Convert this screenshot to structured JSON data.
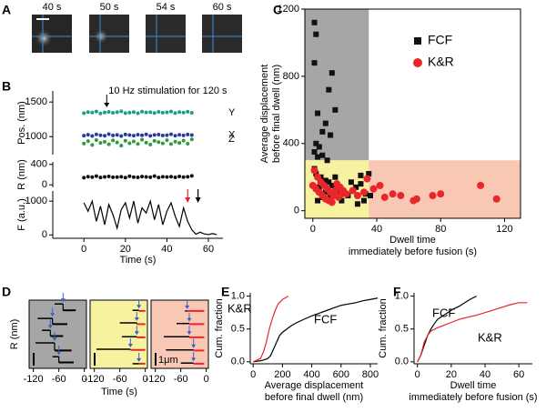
{
  "images": {
    "label": "A",
    "frames": [
      "40 s",
      "50 s",
      "54 s",
      "60 s"
    ]
  },
  "chart_data": [
    {
      "type": "scatter",
      "label": "B",
      "ylabel": "Pos. (nm)",
      "annotation": {
        "text": "10 Hz stimulation for 120 s",
        "x": 11
      },
      "xlim": [
        -15,
        67
      ],
      "ylim": [
        740,
        1660
      ],
      "yticks": [
        1000,
        1500
      ],
      "x": [
        0,
        2,
        4,
        6,
        8,
        10,
        12,
        14,
        16,
        18,
        20,
        22,
        24,
        26,
        28,
        30,
        32,
        34,
        36,
        38,
        40,
        42,
        44,
        46,
        48,
        50,
        52
      ],
      "series": [
        {
          "name": "Y",
          "color": "#1f9a8a",
          "values": [
            1340,
            1355,
            1348,
            1362,
            1335,
            1350,
            1358,
            1344,
            1352,
            1366,
            1340,
            1347,
            1355,
            1338,
            1361,
            1349,
            1353,
            1342,
            1357,
            1346,
            1351,
            1363,
            1339,
            1354,
            1348,
            1359,
            1345
          ]
        },
        {
          "name": "X",
          "color": "#2b3a99",
          "values": [
            1015,
            1028,
            1010,
            1032,
            1020,
            1012,
            1035,
            1018,
            1025,
            1008,
            1030,
            1022,
            1014,
            1027,
            1019,
            1033,
            1011,
            1024,
            1029,
            1016,
            1021,
            1034,
            1013,
            1026,
            1018,
            1031,
            1023
          ]
        },
        {
          "name": "Z",
          "color": "#2e9c3a",
          "values": [
            900,
            935,
            880,
            950,
            910,
            925,
            890,
            945,
            915,
            870,
            940,
            905,
            930,
            895,
            955,
            912,
            885,
            938,
            920,
            902,
            948,
            893,
            927,
            910,
            942,
            898,
            960
          ]
        }
      ]
    },
    {
      "type": "scatter",
      "ylabel": "R (nm)",
      "xlim": [
        -15,
        67
      ],
      "ylim": [
        -50,
        450
      ],
      "yticks": [
        0,
        400
      ],
      "x": [
        0,
        2,
        4,
        6,
        8,
        10,
        12,
        14,
        16,
        18,
        20,
        22,
        24,
        26,
        28,
        30,
        32,
        34,
        36,
        38,
        40,
        42,
        44,
        46,
        48,
        50,
        52
      ],
      "series": [
        {
          "color": "#111111",
          "values": [
            140,
            160,
            150,
            170,
            145,
            155,
            165,
            148,
            152,
            158,
            142,
            168,
            150,
            147,
            162,
            155,
            149,
            171,
            144,
            157,
            153,
            160,
            146,
            165,
            150,
            158,
            175
          ]
        }
      ]
    },
    {
      "type": "line",
      "ylabel": "F (a.u.)",
      "xlabel": "Time (s)",
      "color": "#000000",
      "xlim": [
        -15,
        67
      ],
      "ylim": [
        -100,
        1300
      ],
      "yticks": [
        0,
        1000
      ],
      "xticks": [
        0,
        20,
        40,
        60
      ],
      "arrows": [
        {
          "x": 50,
          "color": "#e8262b"
        },
        {
          "x": 55,
          "color": "#000000"
        }
      ],
      "x": [
        0,
        2,
        4,
        6,
        8,
        10,
        12,
        14,
        16,
        18,
        20,
        22,
        24,
        26,
        28,
        30,
        32,
        34,
        36,
        38,
        40,
        42,
        44,
        46,
        48,
        50,
        52,
        54,
        56,
        58,
        60,
        62,
        64
      ],
      "values": [
        950,
        700,
        1000,
        400,
        850,
        300,
        900,
        600,
        200,
        750,
        950,
        500,
        1000,
        350,
        800,
        650,
        1000,
        450,
        900,
        300,
        700,
        950,
        550,
        250,
        800,
        400,
        150,
        20,
        80,
        30,
        10,
        40,
        5
      ]
    },
    {
      "type": "scatter",
      "label": "C",
      "xlabel": [
        "Dwell time",
        "immediately before fusion (s)"
      ],
      "ylabel": [
        "Average displacement",
        "before final dwell (nm)"
      ],
      "xlim": [
        -5,
        130
      ],
      "ylim": [
        -45,
        1200
      ],
      "xticks": [
        0,
        40,
        80,
        120
      ],
      "yticks": [
        0,
        400,
        800,
        1200
      ],
      "regions": [
        {
          "color": "#a6a6a6",
          "xlim": [
            -5,
            35
          ],
          "ylim": [
            300,
            1200
          ]
        },
        {
          "color": "#f7f2a0",
          "xlim": [
            -5,
            35
          ],
          "ylim": [
            -45,
            300
          ]
        },
        {
          "color": "#f9c8b5",
          "xlim": [
            35,
            130
          ],
          "ylim": [
            -45,
            300
          ]
        }
      ],
      "series": [
        {
          "name": "FCF",
          "color": "#111111",
          "marker": "square",
          "x": [
            1,
            2,
            1,
            12,
            10,
            14,
            3,
            8,
            6,
            11,
            2,
            4,
            1,
            6,
            3,
            9,
            1,
            2,
            5,
            8,
            10,
            12,
            15,
            17,
            20,
            22,
            25,
            27,
            30,
            33,
            35,
            32,
            28,
            18,
            6,
            3,
            4,
            14,
            24,
            36,
            30,
            8,
            11
          ],
          "values": [
            1120,
            1050,
            880,
            820,
            720,
            600,
            580,
            520,
            470,
            450,
            400,
            380,
            350,
            330,
            320,
            300,
            250,
            220,
            200,
            180,
            170,
            150,
            130,
            110,
            100,
            90,
            120,
            140,
            160,
            100,
            220,
            60,
            40,
            60,
            80,
            60,
            140,
            200,
            170,
            90,
            210,
            110,
            90
          ]
        },
        {
          "name": "K&R",
          "color": "#e8262b",
          "marker": "circle",
          "x": [
            0,
            1,
            3,
            5,
            7,
            9,
            11,
            13,
            15,
            17,
            19,
            21,
            2,
            4,
            6,
            8,
            10,
            12,
            14,
            16,
            18,
            25,
            28,
            32,
            34,
            38,
            42,
            45,
            50,
            55,
            63,
            65,
            75,
            80,
            105,
            115
          ],
          "values": [
            150,
            240,
            200,
            170,
            150,
            130,
            110,
            90,
            160,
            140,
            120,
            100,
            130,
            110,
            90,
            70,
            60,
            50,
            120,
            80,
            100,
            120,
            90,
            110,
            190,
            130,
            150,
            80,
            100,
            90,
            60,
            70,
            90,
            100,
            150,
            70
          ]
        }
      ]
    },
    {
      "type": "step",
      "label": "D",
      "ylabel": "R (nm)",
      "xlabel": "Time (s)",
      "xlim": [
        -130,
        5
      ],
      "xticks": [
        -120,
        -60,
        0
      ],
      "scale_bar": {
        "value": 1000,
        "label": "1μm"
      },
      "arrow_color": "#3a5fcd",
      "panels": [
        {
          "color": "#a6a6a6",
          "final_color": "#000000",
          "traces": [
            {
              "x": [
                -70,
                -50,
                -20
              ],
              "values": [
                700,
                200
              ]
            },
            {
              "x": [
                -110,
                -75,
                -40
              ],
              "values": [
                600,
                150
              ]
            },
            {
              "x": [
                -100,
                -80,
                -50
              ],
              "values": [
                700,
                250
              ]
            },
            {
              "x": [
                -115,
                -70,
                -30
              ],
              "values": [
                750,
                150
              ]
            },
            {
              "x": [
                -75,
                -60,
                -25
              ],
              "values": [
                700,
                250
              ]
            }
          ]
        },
        {
          "color": "#f7f2a0",
          "final_color": "#e8262b",
          "traces": [
            {
              "x": [
                -30,
                -15,
                0
              ],
              "values": [
                200,
                150
              ]
            },
            {
              "x": [
                -60,
                -20,
                0
              ],
              "values": [
                250,
                150
              ]
            },
            {
              "x": [
                -55,
                -20,
                0
              ],
              "values": [
                200,
                150
              ]
            },
            {
              "x": [
                -115,
                -35,
                0
              ],
              "values": [
                250,
                200
              ]
            },
            {
              "x": [
                -30,
                -15,
                0
              ],
              "values": [
                150,
                150
              ]
            }
          ]
        },
        {
          "color": "#f9c8b5",
          "final_color": "#e8262b",
          "traces": [
            {
              "x": [
                -50,
                -45,
                -5
              ],
              "values": [
                150,
                150
              ]
            },
            {
              "x": [
                -70,
                -40,
                -5
              ],
              "values": [
                200,
                150
              ]
            },
            {
              "x": [
                -100,
                -40,
                -5
              ],
              "values": [
                200,
                150
              ]
            },
            {
              "x": [
                -95,
                -30,
                -5
              ],
              "values": [
                200,
                150
              ]
            },
            {
              "x": [
                -60,
                -30,
                -5
              ],
              "values": [
                200,
                150
              ]
            }
          ]
        }
      ]
    },
    {
      "type": "line",
      "label": "E",
      "ylabel": "Cum. fraction",
      "xlabel": [
        "Average displacement",
        "before final dwell (nm)"
      ],
      "xlim": [
        -20,
        850
      ],
      "ylim": [
        -0.03,
        1.05
      ],
      "xticks": [
        0,
        200,
        400,
        600,
        800
      ],
      "yticks": [
        {
          "value": 0,
          "label": "0.0"
        },
        0.5,
        {
          "value": 1,
          "label": "1.0"
        }
      ],
      "series": [
        {
          "name": "FCF",
          "color": "#000000",
          "x": [
            0,
            60,
            100,
            120,
            140,
            160,
            180,
            200,
            230,
            260,
            300,
            350,
            400,
            450,
            500,
            550,
            600,
            700,
            750,
            800,
            850
          ],
          "values": [
            0,
            0.02,
            0.05,
            0.1,
            0.2,
            0.3,
            0.4,
            0.45,
            0.5,
            0.55,
            0.6,
            0.65,
            0.7,
            0.74,
            0.78,
            0.82,
            0.86,
            0.9,
            0.93,
            0.95,
            0.97
          ]
        },
        {
          "name": "K&R",
          "color": "#e8262b",
          "x": [
            0,
            50,
            70,
            90,
            110,
            130,
            150,
            170,
            200,
            240
          ],
          "values": [
            0,
            0.05,
            0.15,
            0.3,
            0.5,
            0.65,
            0.78,
            0.88,
            0.95,
            1.0
          ]
        }
      ]
    },
    {
      "type": "line",
      "label": "F",
      "ylabel": "Cum. fraction",
      "xlabel": [
        "Dwell time",
        "immediately before fusion (s)"
      ],
      "xlim": [
        -2,
        68
      ],
      "ylim": [
        -0.03,
        1.05
      ],
      "xticks": [
        0,
        20,
        40,
        60
      ],
      "yticks": [
        {
          "value": 0,
          "label": "0.0"
        },
        0.5,
        {
          "value": 1,
          "label": "1.0"
        }
      ],
      "series": [
        {
          "name": "FCF",
          "color": "#000000",
          "x": [
            0,
            2,
            4,
            6,
            8,
            10,
            12,
            15,
            18,
            21,
            25,
            28,
            31,
            35
          ],
          "values": [
            0,
            0.1,
            0.25,
            0.4,
            0.5,
            0.58,
            0.65,
            0.7,
            0.75,
            0.8,
            0.85,
            0.9,
            0.95,
            1.0
          ]
        },
        {
          "name": "K&R",
          "color": "#e8262b",
          "x": [
            0,
            2,
            4,
            6,
            8,
            12,
            16,
            20,
            25,
            30,
            35,
            40,
            45,
            50,
            55,
            60,
            65
          ],
          "values": [
            0,
            0.1,
            0.3,
            0.4,
            0.47,
            0.52,
            0.56,
            0.6,
            0.65,
            0.68,
            0.71,
            0.75,
            0.79,
            0.83,
            0.87,
            0.9,
            0.9
          ]
        }
      ]
    }
  ]
}
